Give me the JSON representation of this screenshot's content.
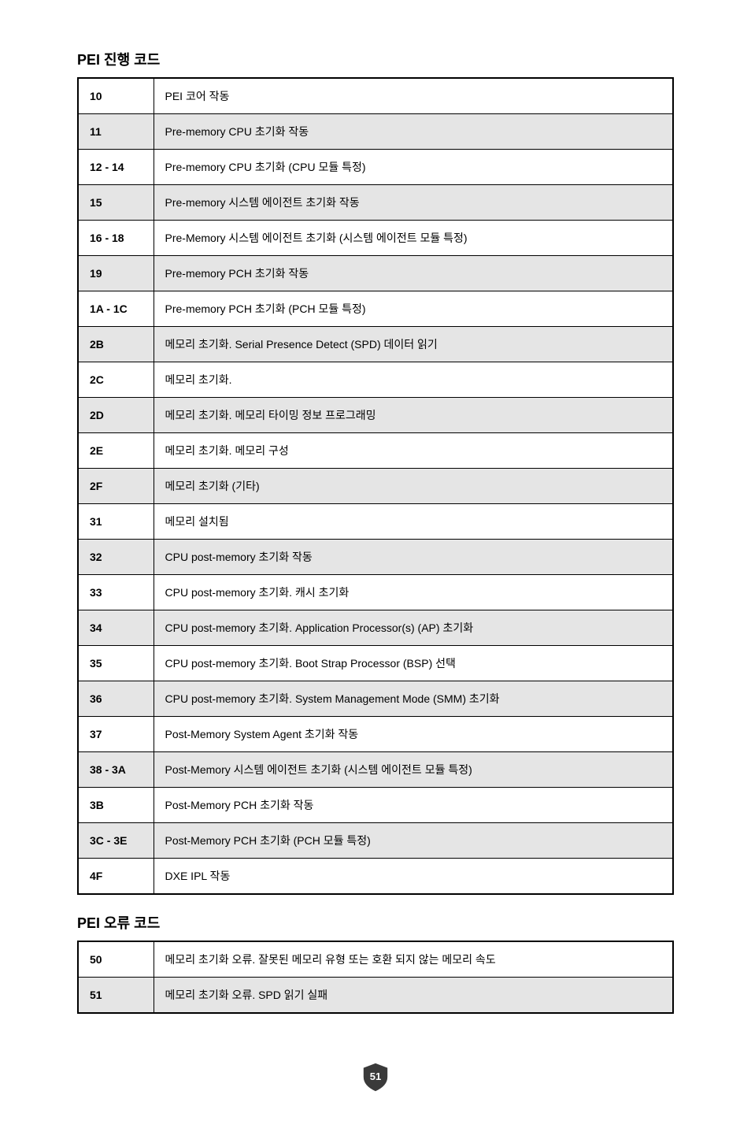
{
  "section1": {
    "title": "PEI 진행 코드",
    "rows": [
      {
        "code": "10",
        "desc": "PEI 코어 작동",
        "shade": false
      },
      {
        "code": "11",
        "desc": "Pre-memory CPU 초기화 작동",
        "shade": true
      },
      {
        "code": "12 - 14",
        "desc": "Pre-memory CPU 초기화 (CPU 모듈 특정)",
        "shade": false
      },
      {
        "code": "15",
        "desc": "Pre-memory 시스템 에이전트 초기화 작동",
        "shade": true
      },
      {
        "code": "16 - 18",
        "desc": "Pre-Memory 시스템 에이전트 초기화 (시스템 에이전트 모듈 특정)",
        "shade": false
      },
      {
        "code": "19",
        "desc": "Pre-memory PCH 초기화 작동",
        "shade": true
      },
      {
        "code": "1A - 1C",
        "desc": "Pre-memory PCH 초기화 (PCH 모듈 특정)",
        "shade": false
      },
      {
        "code": "2B",
        "desc": "메모리 초기화. Serial Presence Detect (SPD) 데이터 읽기",
        "shade": true
      },
      {
        "code": "2C",
        "desc": "메모리 초기화.",
        "shade": false
      },
      {
        "code": "2D",
        "desc": "메모리 초기화. 메모리 타이밍 정보 프로그래밍",
        "shade": true
      },
      {
        "code": "2E",
        "desc": "메모리 초기화. 메모리 구성",
        "shade": false
      },
      {
        "code": "2F",
        "desc": "메모리 초기화 (기타)",
        "shade": true
      },
      {
        "code": "31",
        "desc": "메모리 설치됨",
        "shade": false
      },
      {
        "code": "32",
        "desc": "CPU post-memory 초기화 작동",
        "shade": true
      },
      {
        "code": "33",
        "desc": "CPU post-memory 초기화. 캐시 초기화",
        "shade": false
      },
      {
        "code": "34",
        "desc": "CPU post-memory 초기화. Application Processor(s) (AP) 초기화",
        "shade": true
      },
      {
        "code": "35",
        "desc": "CPU post-memory 초기화. Boot Strap Processor (BSP) 선택",
        "shade": false
      },
      {
        "code": "36",
        "desc": "CPU post-memory 초기화.  System Management Mode (SMM) 초기화",
        "shade": true
      },
      {
        "code": "37",
        "desc": "Post-Memory System Agent 초기화 작동",
        "shade": false
      },
      {
        "code": "38 - 3A",
        "desc": "Post-Memory 시스템 에이전트 초기화 (시스템 에이전트 모듈 특정)",
        "shade": true
      },
      {
        "code": "3B",
        "desc": "Post-Memory PCH 초기화 작동",
        "shade": false
      },
      {
        "code": "3C - 3E",
        "desc": "Post-Memory PCH 초기화 (PCH 모듈 특정)",
        "shade": true
      },
      {
        "code": "4F",
        "desc": "DXE IPL 작동",
        "shade": false
      }
    ]
  },
  "section2": {
    "title": "PEI 오류 코드",
    "rows": [
      {
        "code": "50",
        "desc": "메모리 초기화 오류. 잘못된 메모리 유형 또는 호환 되지 않는 메모리 속도",
        "shade": false
      },
      {
        "code": "51",
        "desc": "메모리 초기화 오류. SPD 읽기 실패",
        "shade": true
      }
    ]
  },
  "page_number": "51",
  "colors": {
    "shade_bg": "#e5e5e5",
    "text": "#000000",
    "border": "#000000",
    "badge_fill": "#3a3a3a",
    "badge_text": "#ffffff",
    "page_bg": "#ffffff"
  }
}
